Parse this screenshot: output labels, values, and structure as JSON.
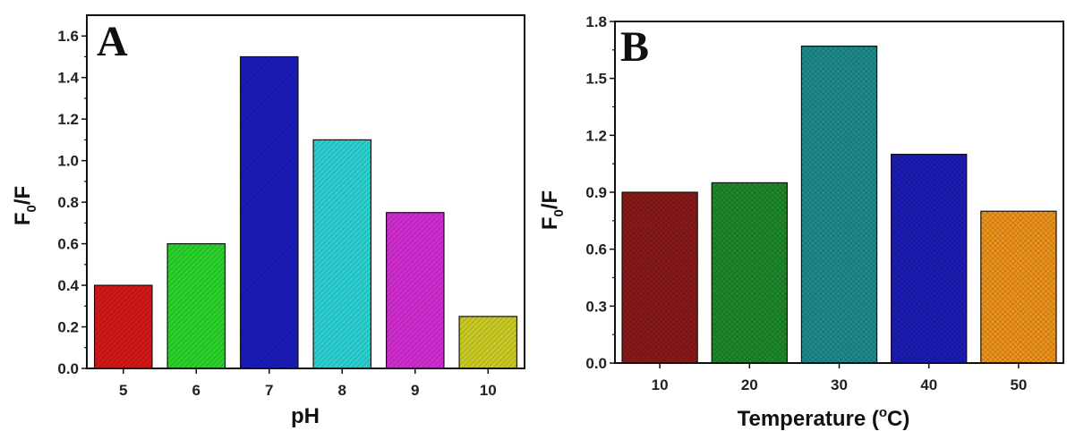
{
  "chart_data": [
    {
      "type": "bar",
      "panel_label": "A",
      "xlabel": "pH",
      "ylabel": "F",
      "ylabel_sub": "0",
      "ylabel_tail": "/F",
      "categories": [
        "5",
        "6",
        "7",
        "8",
        "9",
        "10"
      ],
      "values": [
        0.4,
        0.6,
        1.5,
        1.1,
        0.75,
        0.25
      ],
      "colors": [
        "#d01818",
        "#2ad12a",
        "#1a1ab8",
        "#2ccfcf",
        "#cf2ccf",
        "#c9c925"
      ],
      "yticks": [
        "0.0",
        "0.2",
        "0.4",
        "0.6",
        "0.8",
        "1.0",
        "1.2",
        "1.4",
        "1.6"
      ],
      "ylim": [
        0,
        1.7
      ],
      "grid": false,
      "legend": "none"
    },
    {
      "type": "bar",
      "panel_label": "B",
      "xlabel": "Temperature (",
      "xlabel_sup": "o",
      "xlabel_tail": "C)",
      "ylabel": "F",
      "ylabel_sub": "0",
      "ylabel_tail": "/F",
      "categories": [
        "10",
        "20",
        "30",
        "40",
        "50"
      ],
      "values": [
        0.9,
        0.95,
        1.67,
        1.1,
        0.8
      ],
      "colors": [
        "#8b1a1a",
        "#1e8a2a",
        "#1f8c8c",
        "#1c1cb8",
        "#f0951a"
      ],
      "yticks": [
        "0.0",
        "0.3",
        "0.6",
        "0.9",
        "1.2",
        "1.5",
        "1.8"
      ],
      "ylim": [
        0,
        1.8
      ],
      "grid": false,
      "legend": "none"
    }
  ]
}
